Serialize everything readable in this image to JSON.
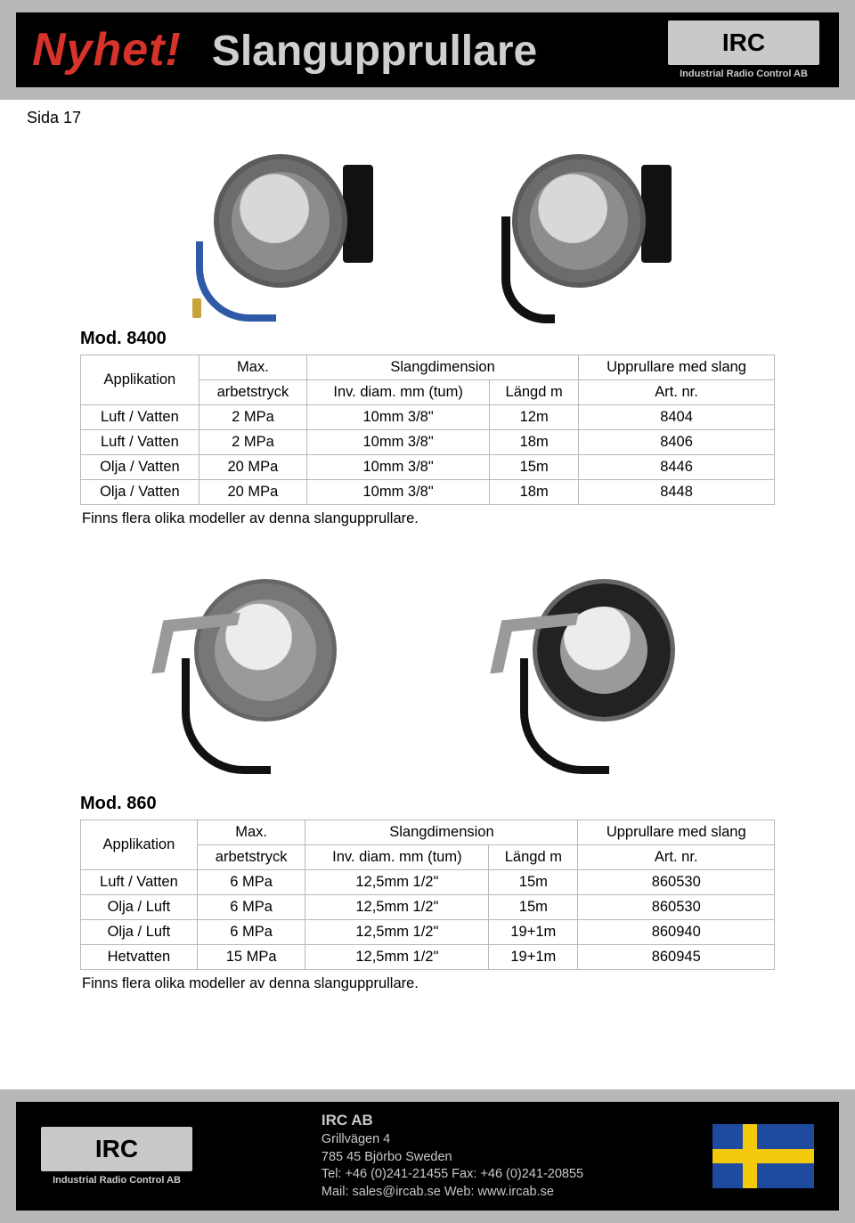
{
  "header": {
    "nyhet": "Nyhet!",
    "title": "Slangupprullare",
    "logo_text": "IRC",
    "logo_sub": "Industrial Radio Control AB"
  },
  "page_label": "Sida 17",
  "section1": {
    "model": "Mod. 8400",
    "columns": {
      "applikation": "Applikation",
      "arbetstryck_top": "Max.",
      "arbetstryck_bottom": "arbetstryck",
      "slangdim": "Slangdimension",
      "inv": "Inv. diam. mm (tum)",
      "langd": "Längd m",
      "upprullare_top": "Upprullare med slang",
      "upprullare_bottom": "Art. nr."
    },
    "rows": [
      {
        "app": "Luft / Vatten",
        "press": "2 MPa",
        "dim": "10mm 3/8\"",
        "len": "12m",
        "art": "8404"
      },
      {
        "app": "Luft / Vatten",
        "press": "2 MPa",
        "dim": "10mm 3/8\"",
        "len": "18m",
        "art": "8406"
      },
      {
        "app": "Olja / Vatten",
        "press": "20 MPa",
        "dim": "10mm 3/8\"",
        "len": "15m",
        "art": "8446"
      },
      {
        "app": "Olja / Vatten",
        "press": "20 MPa",
        "dim": "10mm 3/8\"",
        "len": "18m",
        "art": "8448"
      }
    ],
    "note": "Finns flera olika modeller av denna slangupprullare."
  },
  "section2": {
    "model": "Mod. 860",
    "columns": {
      "applikation": "Applikation",
      "arbetstryck_top": "Max.",
      "arbetstryck_bottom": "arbetstryck",
      "slangdim": "Slangdimension",
      "inv": "Inv. diam. mm (tum)",
      "langd": "Längd m",
      "upprullare_top": "Upprullare med slang",
      "upprullare_bottom": "Art. nr."
    },
    "rows": [
      {
        "app": "Luft / Vatten",
        "press": "6 MPa",
        "dim": "12,5mm 1/2\"",
        "len": "15m",
        "art": "860530"
      },
      {
        "app": "Olja / Luft",
        "press": "6 MPa",
        "dim": "12,5mm 1/2\"",
        "len": "15m",
        "art": "860530"
      },
      {
        "app": "Olja / Luft",
        "press": "6 MPa",
        "dim": "12,5mm 1/2\"",
        "len": "19+1m",
        "art": "860940"
      },
      {
        "app": "Hetvatten",
        "press": "15 MPa",
        "dim": "12,5mm 1/2\"",
        "len": "19+1m",
        "art": "860945"
      }
    ],
    "note": "Finns flera olika modeller av denna slangupprullare."
  },
  "footer": {
    "logo_text": "IRC",
    "logo_sub": "Industrial Radio Control AB",
    "company": "IRC AB",
    "addr1": "Grillvägen 4",
    "addr2": "785 45 Björbo Sweden",
    "tel": "Tel: +46 (0)241-21455 Fax: +46 (0)241-20855",
    "mail": "Mail: sales@ircab.se Web: www.ircab.se"
  },
  "colors": {
    "accent_red": "#d6332a",
    "header_bg": "#000000",
    "frame_gray": "#b7b7b7",
    "text_light": "#c9c9c9",
    "table_border": "#b8b8b8",
    "flag_blue": "#1e4aa0",
    "flag_yellow": "#f4c90b",
    "hose_blue": "#2f5aa8"
  }
}
